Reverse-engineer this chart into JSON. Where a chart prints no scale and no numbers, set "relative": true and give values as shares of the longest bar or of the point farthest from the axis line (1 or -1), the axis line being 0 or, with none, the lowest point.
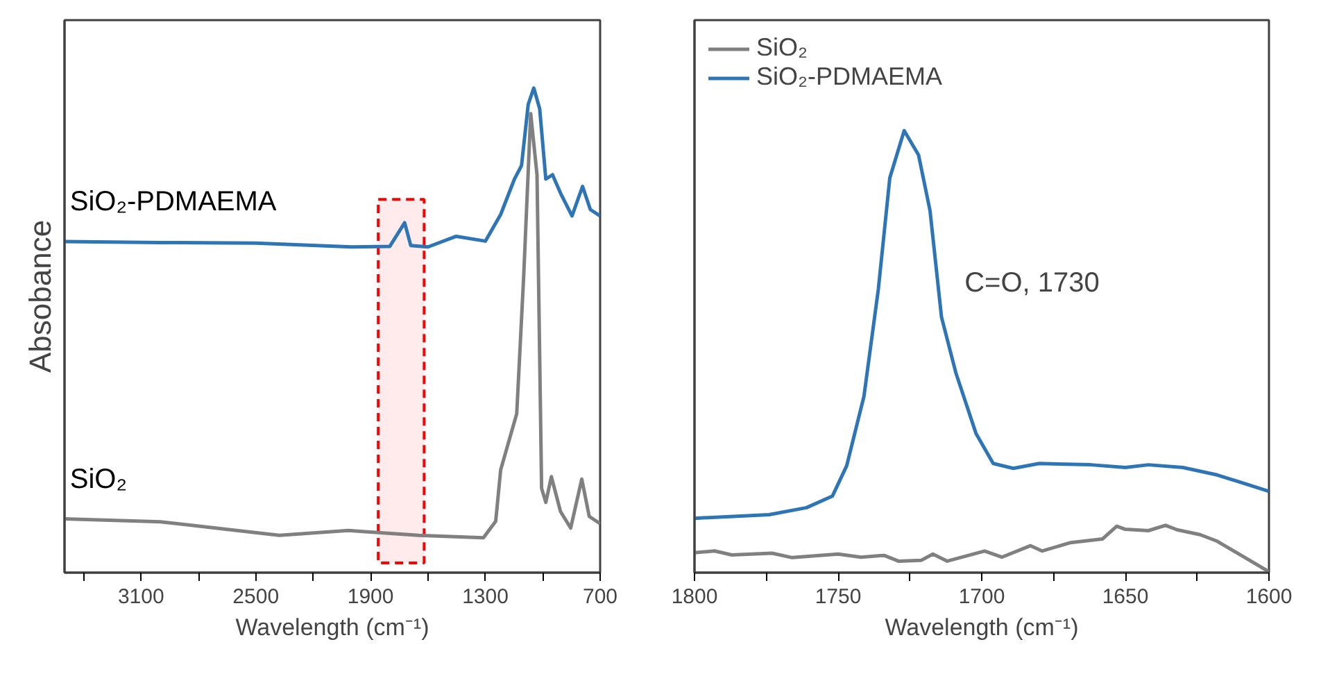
{
  "chart_data": [
    {
      "type": "line",
      "relative": true,
      "xlabel": "Wavelength (cm⁻¹)",
      "ylabel": "Absobance",
      "legend": false,
      "xlim": [
        3500,
        700
      ],
      "xticks": [
        {
          "value": 3400,
          "label": null
        },
        3100,
        {
          "value": 2800,
          "label": null
        },
        2500,
        {
          "value": 2200,
          "label": null
        },
        1900,
        {
          "value": 1600,
          "label": null
        },
        1300,
        {
          "value": 1000,
          "label": null
        },
        700
      ],
      "bands": [
        {
          "axis": "x",
          "from": 1860,
          "to": 1620,
          "color": "#ff0000"
        }
      ],
      "series": [
        {
          "name": "SiO₂-PDMAEMA",
          "color": "#2e75b6",
          "x": [
            3500,
            3000,
            2500,
            2000,
            1800,
            1722,
            1690,
            1600,
            1452,
            1300,
            1220,
            1148,
            1111,
            1076,
            1047,
            1016,
            984,
            949,
            907,
            847,
            792,
            751,
            700
          ],
          "values": [
            0.683,
            0.681,
            0.68,
            0.672,
            0.673,
            0.722,
            0.675,
            0.672,
            0.694,
            0.684,
            0.739,
            0.812,
            0.84,
            0.966,
            1,
            0.957,
            0.812,
            0.821,
            0.783,
            0.736,
            0.797,
            0.749,
            0.736
          ]
        },
        {
          "name": "SiO₂",
          "color": "#808080",
          "x": [
            3500,
            3000,
            2377,
            2016,
            1650,
            1310,
            1246,
            1220,
            1136,
            1100,
            1063,
            1030,
            1006,
            984,
            955,
            907,
            854,
            796,
            757,
            700
          ],
          "values": [
            0.111,
            0.105,
            0.077,
            0.087,
            0.077,
            0.072,
            0.106,
            0.212,
            0.328,
            0.609,
            0.947,
            0.821,
            0.174,
            0.145,
            0.198,
            0.126,
            0.092,
            0.193,
            0.116,
            0.101
          ]
        }
      ]
    },
    {
      "type": "line",
      "relative": true,
      "xlabel": "Wavelength (cm⁻¹)",
      "legend": "top left",
      "xlim": [
        1800,
        1600
      ],
      "xticks": [
        1800,
        {
          "value": 1775,
          "label": null
        },
        1750,
        {
          "value": 1725,
          "label": null
        },
        1700,
        {
          "value": 1675,
          "label": null
        },
        1650,
        {
          "value": 1625,
          "label": null
        },
        1600
      ],
      "annotations": [
        "C=O, 1730"
      ],
      "series": [
        {
          "name": "SiO₂",
          "color": "#808080",
          "x": [
            1800,
            1793,
            1787,
            1773,
            1766,
            1750,
            1742,
            1734,
            1729,
            1721,
            1717,
            1712,
            1699,
            1693,
            1683,
            1679,
            1669,
            1658,
            1653,
            1650,
            1642,
            1636,
            1632,
            1624,
            1618,
            1600
          ],
          "values": [
            0.045,
            0.049,
            0.04,
            0.044,
            0.034,
            0.042,
            0.035,
            0.039,
            0.026,
            0.028,
            0.042,
            0.026,
            0.049,
            0.035,
            0.061,
            0.049,
            0.068,
            0.076,
            0.105,
            0.098,
            0.095,
            0.107,
            0.097,
            0.086,
            0.071,
            0.002
          ]
        },
        {
          "name": "SiO₂-PDMAEMA",
          "color": "#2e75b6",
          "x": [
            1800,
            1774,
            1761,
            1752,
            1747,
            1741,
            1736,
            1732,
            1727,
            1722,
            1718,
            1714,
            1709,
            1702,
            1696,
            1689,
            1680,
            1662,
            1650,
            1642,
            1630,
            1618,
            1600
          ],
          "values": [
            0.123,
            0.131,
            0.147,
            0.173,
            0.242,
            0.399,
            0.641,
            0.893,
            1,
            0.945,
            0.819,
            0.578,
            0.452,
            0.315,
            0.247,
            0.236,
            0.247,
            0.244,
            0.238,
            0.244,
            0.238,
            0.221,
            0.184
          ]
        }
      ]
    }
  ]
}
